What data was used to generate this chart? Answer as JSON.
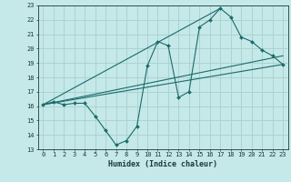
{
  "xlabel": "Humidex (Indice chaleur)",
  "bg_color": "#c5e8e8",
  "grid_color": "#a8d0d0",
  "line_color": "#1a6b6b",
  "xlim": [
    -0.5,
    23.5
  ],
  "ylim": [
    13,
    23
  ],
  "xticks": [
    0,
    1,
    2,
    3,
    4,
    5,
    6,
    7,
    8,
    9,
    10,
    11,
    12,
    13,
    14,
    15,
    16,
    17,
    18,
    19,
    20,
    21,
    22,
    23
  ],
  "yticks": [
    13,
    14,
    15,
    16,
    17,
    18,
    19,
    20,
    21,
    22,
    23
  ],
  "line1_x": [
    0,
    1,
    2,
    3,
    4,
    5,
    6,
    7,
    8,
    9,
    10,
    11,
    12,
    13,
    14,
    15,
    16,
    17,
    18,
    19,
    20,
    21,
    22,
    23
  ],
  "line1_y": [
    16.1,
    16.3,
    16.1,
    16.2,
    16.2,
    15.3,
    14.3,
    13.3,
    13.6,
    14.6,
    18.8,
    20.5,
    20.2,
    16.6,
    17.0,
    21.5,
    22.0,
    22.8,
    22.2,
    20.8,
    20.5,
    19.9,
    19.5,
    18.9
  ],
  "line2_x": [
    0,
    23
  ],
  "line2_y": [
    16.1,
    18.9
  ],
  "line3_x": [
    0,
    17
  ],
  "line3_y": [
    16.1,
    22.8
  ],
  "line4_x": [
    0,
    23
  ],
  "line4_y": [
    16.1,
    19.5
  ]
}
